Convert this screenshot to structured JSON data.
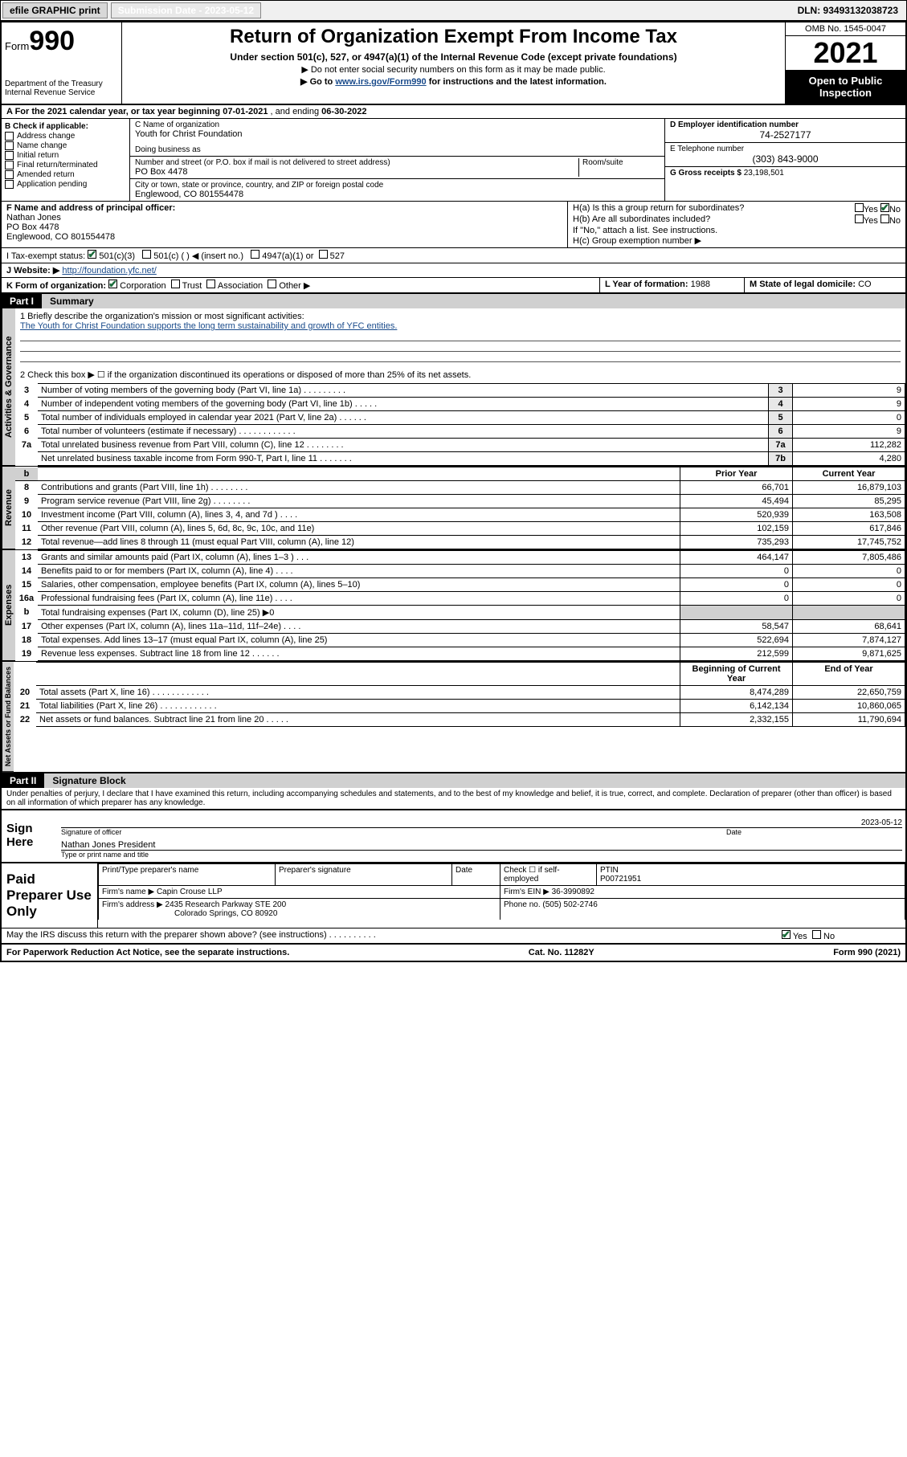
{
  "topbar": {
    "efile": "efile GRAPHIC print",
    "sub_label": "Submission Date - 2023-05-12",
    "dln": "DLN: 93493132038723"
  },
  "header": {
    "form_label": "Form",
    "form_num": "990",
    "dept": "Department of the Treasury\nInternal Revenue Service",
    "title": "Return of Organization Exempt From Income Tax",
    "sub1": "Under section 501(c), 527, or 4947(a)(1) of the Internal Revenue Code (except private foundations)",
    "sub2": "▶ Do not enter social security numbers on this form as it may be made public.",
    "sub3_pre": "▶ Go to ",
    "sub3_link": "www.irs.gov/Form990",
    "sub3_post": " for instructions and the latest information.",
    "omb": "OMB No. 1545-0047",
    "year": "2021",
    "open_pub": "Open to Public Inspection"
  },
  "A": {
    "text_pre": "A For the 2021 calendar year, or tax year beginning ",
    "begin": "07-01-2021",
    "mid": " , and ending ",
    "end": "06-30-2022"
  },
  "B": {
    "label": "B Check if applicable:",
    "items": [
      "Address change",
      "Name change",
      "Initial return",
      "Final return/terminated",
      "Amended return",
      "Application pending"
    ]
  },
  "C": {
    "name_lbl": "C Name of organization",
    "name": "Youth for Christ Foundation",
    "dba_lbl": "Doing business as",
    "dba": "",
    "street_lbl": "Number and street (or P.O. box if mail is not delivered to street address)",
    "room_lbl": "Room/suite",
    "street": "PO Box 4478",
    "city_lbl": "City or town, state or province, country, and ZIP or foreign postal code",
    "city": "Englewood, CO  801554478"
  },
  "D": {
    "lbl": "D Employer identification number",
    "val": "74-2527177"
  },
  "E": {
    "lbl": "E Telephone number",
    "val": "(303) 843-9000"
  },
  "G": {
    "lbl": "G Gross receipts $",
    "val": "23,198,501"
  },
  "F": {
    "lbl": "F Name and address of principal officer:",
    "name": "Nathan Jones",
    "street": "PO Box 4478",
    "city": "Englewood, CO  801554478"
  },
  "H": {
    "a_lbl": "H(a)  Is this a group return for subordinates?",
    "a_yes": "Yes",
    "a_no": "No",
    "b_lbl": "H(b)  Are all subordinates included?",
    "b_yes": "Yes",
    "b_no": "No",
    "note": "If \"No,\" attach a list. See instructions.",
    "c_lbl": "H(c)  Group exemption number ▶"
  },
  "I": {
    "lbl": "I   Tax-exempt status:",
    "opt1": "501(c)(3)",
    "opt2": "501(c) (   ) ◀ (insert no.)",
    "opt3": "4947(a)(1) or",
    "opt4": "527"
  },
  "J": {
    "lbl": "J   Website: ▶",
    "val": "http://foundation.yfc.net/"
  },
  "K": {
    "lbl": "K Form of organization:",
    "opts": [
      "Corporation",
      "Trust",
      "Association",
      "Other ▶"
    ]
  },
  "L": {
    "lbl": "L Year of formation:",
    "val": "1988"
  },
  "M": {
    "lbl": "M State of legal domicile:",
    "val": "CO"
  },
  "parts": {
    "p1": "Part I",
    "p1t": "Summary",
    "p2": "Part II",
    "p2t": "Signature Block"
  },
  "vtabs": {
    "gov": "Activities & Governance",
    "rev": "Revenue",
    "exp": "Expenses",
    "net": "Net Assets or Fund Balances"
  },
  "summary": {
    "q1": "1  Briefly describe the organization's mission or most significant activities:",
    "mission": "The Youth for Christ Foundation supports the long term sustainability and growth of YFC entities.",
    "q2": "2  Check this box ▶ ☐  if the organization discontinued its operations or disposed of more than 25% of its net assets.",
    "rows_gov": [
      {
        "n": "3",
        "t": "Number of voting members of the governing body (Part VI, line 1a)   .    .    .    .    .    .    .    .    .",
        "k": "3",
        "v": "9"
      },
      {
        "n": "4",
        "t": "Number of independent voting members of the governing body (Part VI, line 1b)    .    .    .    .    .",
        "k": "4",
        "v": "9"
      },
      {
        "n": "5",
        "t": "Total number of individuals employed in calendar year 2021 (Part V, line 2a)    .    .    .    .    .    .",
        "k": "5",
        "v": "0"
      },
      {
        "n": "6",
        "t": "Total number of volunteers (estimate if necessary)    .    .    .    .    .    .    .    .    .    .    .    .",
        "k": "6",
        "v": "9"
      },
      {
        "n": "7a",
        "t": "Total unrelated business revenue from Part VIII, column (C), line 12    .    .    .    .    .    .    .    .",
        "k": "7a",
        "v": "112,282"
      },
      {
        "n": "",
        "t": "Net unrelated business taxable income from Form 990-T, Part I, line 11    .    .    .    .    .    .    .",
        "k": "7b",
        "v": "4,280"
      }
    ],
    "col_prior": "Prior Year",
    "col_curr": "Current Year",
    "rows_rev": [
      {
        "n": "8",
        "t": "Contributions and grants (Part VIII, line 1h)    .    .    .    .    .    .    .    .",
        "p": "66,701",
        "c": "16,879,103"
      },
      {
        "n": "9",
        "t": "Program service revenue (Part VIII, line 2g)    .    .    .    .    .    .    .    .",
        "p": "45,494",
        "c": "85,295"
      },
      {
        "n": "10",
        "t": "Investment income (Part VIII, column (A), lines 3, 4, and 7d )    .    .    .    .",
        "p": "520,939",
        "c": "163,508"
      },
      {
        "n": "11",
        "t": "Other revenue (Part VIII, column (A), lines 5, 6d, 8c, 9c, 10c, and 11e)",
        "p": "102,159",
        "c": "617,846"
      },
      {
        "n": "12",
        "t": "Total revenue—add lines 8 through 11 (must equal Part VIII, column (A), line 12)",
        "p": "735,293",
        "c": "17,745,752"
      }
    ],
    "rows_exp": [
      {
        "n": "13",
        "t": "Grants and similar amounts paid (Part IX, column (A), lines 1–3 )    .    .    .",
        "p": "464,147",
        "c": "7,805,486"
      },
      {
        "n": "14",
        "t": "Benefits paid to or for members (Part IX, column (A), line 4)    .    .    .    .",
        "p": "0",
        "c": "0"
      },
      {
        "n": "15",
        "t": "Salaries, other compensation, employee benefits (Part IX, column (A), lines 5–10)",
        "p": "0",
        "c": "0"
      },
      {
        "n": "16a",
        "t": "Professional fundraising fees (Part IX, column (A), line 11e)    .    .    .    .",
        "p": "0",
        "c": "0"
      },
      {
        "n": "b",
        "t": "Total fundraising expenses (Part IX, column (D), line 25) ▶0",
        "p": "",
        "c": "",
        "grey": true
      },
      {
        "n": "17",
        "t": "Other expenses (Part IX, column (A), lines 11a–11d, 11f–24e)    .    .    .    .",
        "p": "58,547",
        "c": "68,641"
      },
      {
        "n": "18",
        "t": "Total expenses. Add lines 13–17 (must equal Part IX, column (A), line 25)",
        "p": "522,694",
        "c": "7,874,127"
      },
      {
        "n": "19",
        "t": "Revenue less expenses. Subtract line 18 from line 12    .    .    .    .    .    .",
        "p": "212,599",
        "c": "9,871,625"
      }
    ],
    "col_begin": "Beginning of Current Year",
    "col_end": "End of Year",
    "rows_net": [
      {
        "n": "20",
        "t": "Total assets (Part X, line 16)    .    .    .    .    .    .    .    .    .    .    .    .",
        "p": "8,474,289",
        "c": "22,650,759"
      },
      {
        "n": "21",
        "t": "Total liabilities (Part X, line 26)    .    .    .    .    .    .    .    .    .    .    .    .",
        "p": "6,142,134",
        "c": "10,860,065"
      },
      {
        "n": "22",
        "t": "Net assets or fund balances. Subtract line 21 from line 20    .    .    .    .    .",
        "p": "2,332,155",
        "c": "11,790,694"
      }
    ]
  },
  "sig": {
    "decl": "Under penalties of perjury, I declare that I have examined this return, including accompanying schedules and statements, and to the best of my knowledge and belief, it is true, correct, and complete. Declaration of preparer (other than officer) is based on all information of which preparer has any knowledge.",
    "sign_here": "Sign Here",
    "sig_officer": "Signature of officer",
    "date": "2023-05-12",
    "date_lbl": "Date",
    "name": "Nathan Jones President",
    "name_lbl": "Type or print name and title"
  },
  "paid": {
    "title": "Paid Preparer Use Only",
    "c_name": "Print/Type preparer's name",
    "c_sig": "Preparer's signature",
    "c_date": "Date",
    "c_chk": "Check ☐ if self-employed",
    "c_ptin_lbl": "PTIN",
    "c_ptin": "P00721951",
    "firm_name_lbl": "Firm's name    ▶",
    "firm_name": "Capin Crouse LLP",
    "firm_ein_lbl": "Firm's EIN ▶",
    "firm_ein": "36-3990892",
    "firm_addr_lbl": "Firm's address ▶",
    "firm_addr1": "2435 Research Parkway STE 200",
    "firm_addr2": "Colorado Springs, CO  80920",
    "phone_lbl": "Phone no.",
    "phone": "(505) 502-2746"
  },
  "may_irs": {
    "text": "May the IRS discuss this return with the preparer shown above? (see instructions)    .    .    .    .    .    .    .    .    .    .",
    "yes": "Yes",
    "no": "No"
  },
  "footer": {
    "left": "For Paperwork Reduction Act Notice, see the separate instructions.",
    "mid": "Cat. No. 11282Y",
    "right": "Form 990 (2021)"
  },
  "colors": {
    "link": "#1a4b8b",
    "check": "#1a6b3a",
    "grey": "#d0d0d0"
  }
}
